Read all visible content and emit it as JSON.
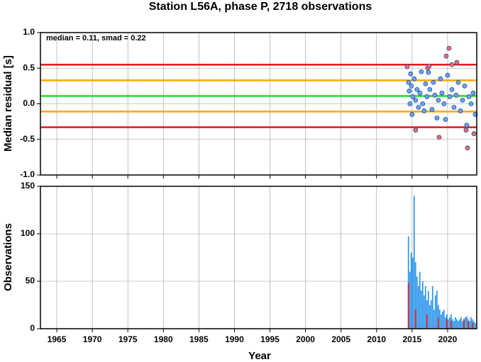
{
  "chart_data": [
    {
      "type": "scatter",
      "title": "Station L56A, phase P, 2718 observations",
      "annotation": "median = 0.11, smad = 0.22",
      "ylabel": "Median residual [s]",
      "xlim": [
        1962.7,
        2024.1
      ],
      "xticks": [
        1965,
        1970,
        1975,
        1980,
        1985,
        1990,
        1995,
        2000,
        2005,
        2010,
        2015,
        2020
      ],
      "ylim": [
        -1.0,
        1.0
      ],
      "yticks": [
        {
          "value": -1.0,
          "label": "-1.0"
        },
        -0.5,
        {
          "value": 0.0,
          "label": "0.0"
        },
        0.5,
        {
          "value": 1.0,
          "label": "1.0"
        }
      ],
      "grid": true,
      "hlines": [
        {
          "value": 0.55,
          "color": "#e41a1c"
        },
        {
          "value": 0.33,
          "color": "#ffa500"
        },
        {
          "value": 0.11,
          "color": "#22dd22"
        },
        {
          "value": -0.11,
          "color": "#ffa500"
        },
        {
          "value": -0.33,
          "color": "#e41a1c"
        }
      ],
      "series": [
        {
          "color": "#6fa3ef",
          "x": [
            2014.5,
            2014.6,
            2014.7,
            2014.8,
            2014.9,
            2015.0,
            2015.1,
            2015.3,
            2015.5,
            2015.7,
            2015.9,
            2016.1,
            2016.3,
            2016.5,
            2016.7,
            2016.9,
            2017.1,
            2017.3,
            2017.5,
            2017.8,
            2018.0,
            2018.2,
            2018.5,
            2018.7,
            2019.0,
            2019.2,
            2019.5,
            2019.7,
            2020.0,
            2020.3,
            2020.6,
            2020.9,
            2021.2,
            2021.5,
            2021.8,
            2022.1,
            2022.4,
            2022.7,
            2023.0,
            2023.3,
            2023.6,
            2023.9
          ],
          "values": [
            0.3,
            0.18,
            0.0,
            0.42,
            0.25,
            -0.15,
            0.1,
            0.35,
            0.05,
            0.2,
            -0.05,
            0.15,
            0.45,
            0.0,
            -0.1,
            0.28,
            0.1,
            0.44,
            0.2,
            -0.08,
            0.3,
            0.12,
            -0.2,
            0.05,
            0.35,
            0.15,
            0.0,
            -0.22,
            0.4,
            0.1,
            0.2,
            -0.05,
            0.12,
            0.3,
            -0.1,
            0.05,
            0.25,
            -0.3,
            0.1,
            0.0,
            0.15,
            -0.15
          ]
        },
        {
          "color": "#f26b6b",
          "x": [
            2014.3,
            2015.5,
            2017.2,
            2017.4,
            2018.8,
            2019.8,
            2020.2,
            2020.6,
            2021.3,
            2022.6,
            2022.8,
            2023.7
          ],
          "values": [
            0.52,
            -0.37,
            0.5,
            0.53,
            -0.47,
            0.67,
            0.78,
            0.55,
            0.58,
            -0.37,
            -0.62,
            -0.42
          ]
        }
      ]
    },
    {
      "type": "bar",
      "ylabel": "Observations",
      "xlabel": "Year",
      "xlim": [
        1962.7,
        2024.1
      ],
      "xticks": [
        1965,
        1970,
        1975,
        1980,
        1985,
        1990,
        1995,
        2000,
        2005,
        2010,
        2015,
        2020
      ],
      "ylim": [
        0,
        150
      ],
      "yticks": [
        0,
        50,
        100,
        150
      ],
      "grid": true,
      "series": [
        {
          "color": "#3399ee",
          "x": [
            2014.4,
            2014.6,
            2014.8,
            2015.0,
            2015.2,
            2015.4,
            2015.6,
            2015.8,
            2016.0,
            2016.2,
            2016.4,
            2016.6,
            2016.8,
            2017.0,
            2017.2,
            2017.4,
            2017.6,
            2017.8,
            2018.0,
            2018.2,
            2018.4,
            2018.6,
            2018.8,
            2019.0,
            2019.2,
            2019.4,
            2019.6,
            2019.8,
            2020.0,
            2020.2,
            2020.4,
            2020.6,
            2020.8,
            2021.0,
            2021.2,
            2021.4,
            2021.6,
            2021.8,
            2022.0,
            2022.2,
            2022.4,
            2022.6,
            2022.8,
            2023.0,
            2023.2,
            2023.4,
            2023.6,
            2023.8
          ],
          "values": [
            97,
            60,
            80,
            75,
            140,
            70,
            55,
            45,
            60,
            40,
            50,
            35,
            45,
            30,
            40,
            25,
            30,
            45,
            20,
            35,
            40,
            25,
            20,
            15,
            18,
            20,
            12,
            15,
            10,
            12,
            15,
            10,
            8,
            12,
            10,
            8,
            10,
            12,
            8,
            10,
            12,
            13,
            10,
            8,
            12,
            10,
            8,
            6
          ]
        },
        {
          "color": "#e41a1c",
          "x": [
            2014.4,
            2015.4,
            2017.0,
            2018.6,
            2019.8,
            2020.4,
            2022.2,
            2022.8,
            2023.4
          ],
          "values": [
            48,
            20,
            15,
            12,
            10,
            8,
            10,
            8,
            6
          ]
        }
      ]
    }
  ]
}
